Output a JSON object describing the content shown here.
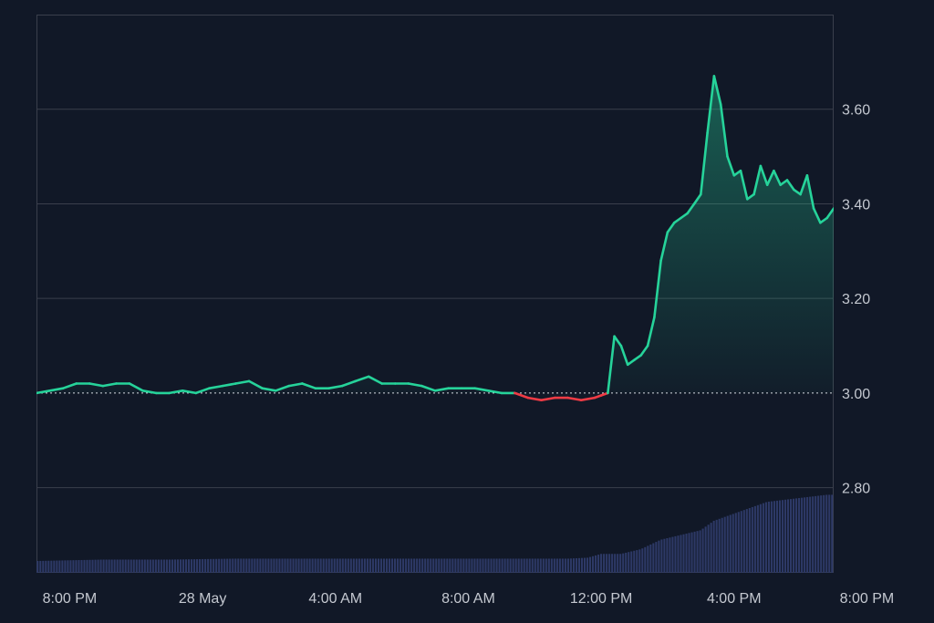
{
  "chart_data": {
    "type": "area",
    "baseline": 3.0,
    "ylim": [
      2.62,
      3.8
    ],
    "xlim": [
      0,
      24
    ],
    "yticks": [
      {
        "value": 2.8,
        "label": "2.80"
      },
      {
        "value": 3.0,
        "label": "3.00"
      },
      {
        "value": 3.2,
        "label": "3.20"
      },
      {
        "value": 3.4,
        "label": "3.40"
      },
      {
        "value": 3.6,
        "label": "3.60"
      }
    ],
    "xticks": [
      {
        "value": 1,
        "label": "8:00 PM"
      },
      {
        "value": 5,
        "label": "28 May"
      },
      {
        "value": 9,
        "label": "4:00 AM"
      },
      {
        "value": 13,
        "label": "8:00 AM"
      },
      {
        "value": 17,
        "label": "12:00 PM"
      },
      {
        "value": 21,
        "label": "4:00 PM"
      },
      {
        "value": 25,
        "label": "8:00 PM"
      }
    ],
    "price_series": {
      "x": [
        0,
        0.4,
        0.8,
        1.2,
        1.6,
        2.0,
        2.4,
        2.8,
        3.2,
        3.6,
        4.0,
        4.4,
        4.8,
        5.2,
        5.6,
        6.0,
        6.4,
        6.8,
        7.2,
        7.6,
        8.0,
        8.4,
        8.8,
        9.2,
        9.6,
        10.0,
        10.4,
        10.8,
        11.2,
        11.6,
        12.0,
        12.4,
        12.8,
        13.2,
        13.6,
        14.0,
        14.4,
        14.8,
        15.2,
        15.6,
        16.0,
        16.4,
        16.8,
        17.0,
        17.2,
        17.4,
        17.6,
        17.8,
        18.0,
        18.2,
        18.4,
        18.6,
        18.8,
        19.0,
        19.2,
        19.4,
        19.6,
        19.8,
        20.0,
        20.2,
        20.4,
        20.6,
        20.8,
        21.0,
        21.2,
        21.4,
        21.6,
        21.8,
        22.0,
        22.2,
        22.4,
        22.6,
        22.8,
        23.0,
        23.2,
        23.4,
        23.6,
        23.8,
        24.0
      ],
      "y": [
        3.0,
        3.005,
        3.01,
        3.02,
        3.02,
        3.015,
        3.02,
        3.02,
        3.005,
        3.0,
        3.0,
        3.005,
        3.0,
        3.01,
        3.015,
        3.02,
        3.025,
        3.01,
        3.005,
        3.015,
        3.02,
        3.01,
        3.01,
        3.015,
        3.025,
        3.035,
        3.02,
        3.02,
        3.02,
        3.015,
        3.005,
        3.01,
        3.01,
        3.01,
        3.005,
        3.0,
        3.0,
        2.99,
        2.985,
        2.99,
        2.99,
        2.985,
        2.99,
        2.995,
        3.0,
        3.12,
        3.1,
        3.06,
        3.07,
        3.08,
        3.1,
        3.16,
        3.28,
        3.34,
        3.36,
        3.37,
        3.38,
        3.4,
        3.42,
        3.55,
        3.67,
        3.61,
        3.5,
        3.46,
        3.47,
        3.41,
        3.42,
        3.48,
        3.44,
        3.47,
        3.44,
        3.45,
        3.43,
        3.42,
        3.46,
        3.39,
        3.36,
        3.37,
        3.39
      ]
    },
    "volume_series": {
      "x": [
        0,
        2,
        4,
        6,
        8,
        10,
        12,
        14,
        16,
        16.6,
        17.0,
        17.6,
        18.2,
        18.8,
        19.4,
        20.0,
        20.4,
        20.8,
        21.2,
        21.6,
        22.0,
        22.6,
        23.2,
        23.8,
        24.0
      ],
      "y": [
        2.645,
        2.648,
        2.648,
        2.65,
        2.65,
        2.65,
        2.65,
        2.65,
        2.65,
        2.652,
        2.66,
        2.66,
        2.67,
        2.69,
        2.7,
        2.71,
        2.73,
        2.74,
        2.75,
        2.76,
        2.77,
        2.775,
        2.78,
        2.785,
        2.785
      ]
    },
    "colors": {
      "up": "#26d39a",
      "down": "#ef3b45",
      "grid": "#3a3f4c",
      "volume": "#2d3966",
      "background": "#111827",
      "baseline": "#d9dde3"
    }
  }
}
